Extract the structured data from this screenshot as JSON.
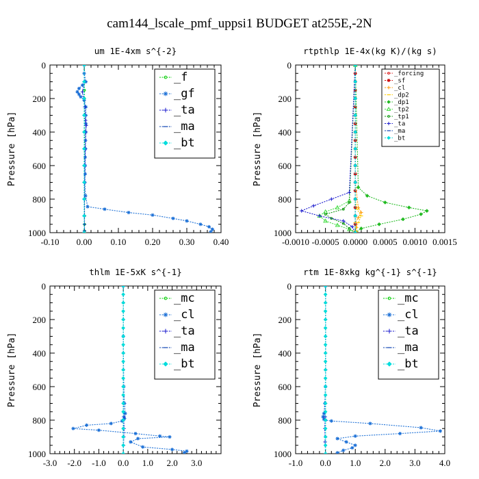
{
  "figure": {
    "title": "cam144_lscale_pmf_uppsi1  BUDGET at255E,-2N"
  },
  "chart_data": [
    {
      "type": "line",
      "title": "um  1E-4xm s^{-2}",
      "ylabel": "Pressure [hPa]",
      "xlim": [
        -0.1,
        0.4
      ],
      "ylim": [
        1000,
        0
      ],
      "xticks": [
        "-0.10",
        "0.00",
        "0.10",
        "0.20",
        "0.30",
        "0.40"
      ],
      "xtick_values": [
        -0.1,
        0.0,
        0.1,
        0.2,
        0.3,
        0.4
      ],
      "yticks": [
        "0",
        "200",
        "400",
        "600",
        "800",
        "1000"
      ],
      "ytick_values": [
        0,
        200,
        400,
        600,
        800,
        1000
      ],
      "legend_position": "top-right",
      "legend_size": "large",
      "series": [
        {
          "name": "_f",
          "color": "#00cc00",
          "marker": "circle",
          "x": [
            0.001,
            0.001,
            0.001,
            0.001,
            0.001,
            0.001,
            0.001,
            0.001,
            0.001,
            0.001,
            0.001,
            0.001,
            0.001
          ],
          "y": [
            0,
            100,
            150,
            200,
            300,
            400,
            500,
            600,
            700,
            800,
            900,
            950,
            990
          ]
        },
        {
          "name": "_gf",
          "color": "#1a6fd6",
          "marker": "star",
          "x": [
            0.0,
            0.0,
            0.005,
            -0.005,
            -0.015,
            -0.02,
            -0.015,
            -0.01,
            0.0,
            0.005,
            0.005,
            0.005,
            0.005,
            0.004,
            0.004,
            0.003,
            0.003,
            0.003,
            0.002,
            0.004,
            0.01,
            0.06,
            0.13,
            0.2,
            0.26,
            0.3,
            0.34,
            0.365,
            0.375,
            0.37
          ],
          "y": [
            0,
            50,
            100,
            120,
            140,
            160,
            175,
            190,
            210,
            250,
            300,
            350,
            400,
            450,
            500,
            550,
            600,
            650,
            700,
            780,
            845,
            860,
            880,
            895,
            915,
            930,
            950,
            965,
            980,
            995
          ]
        },
        {
          "name": "_ta",
          "color": "#1414cc",
          "marker": "plus",
          "x": [
            0.0,
            0.001,
            -0.005,
            0.002,
            0.004,
            0.006,
            0.004,
            0.003,
            0.002,
            0.001,
            0.001,
            0.001,
            0.001,
            0.001
          ],
          "y": [
            0,
            100,
            160,
            250,
            330,
            360,
            400,
            500,
            600,
            700,
            800,
            900,
            950,
            990
          ]
        },
        {
          "name": "_ma",
          "color": "#0a40b0",
          "marker": "dash",
          "x": [
            0.0,
            0.0,
            0.0,
            0.0,
            0.0,
            0.0,
            0.0,
            0.0,
            0.0,
            0.0,
            0.0
          ],
          "y": [
            0,
            100,
            200,
            300,
            400,
            500,
            600,
            700,
            800,
            900,
            1000
          ]
        },
        {
          "name": "_bt",
          "color": "#00dddd",
          "marker": "diamond",
          "x": [
            0.0,
            0.0,
            0.0,
            0.0,
            0.0,
            0.0,
            0.0,
            0.0,
            0.0,
            0.0,
            0.0
          ],
          "y": [
            0,
            100,
            200,
            300,
            400,
            500,
            600,
            700,
            800,
            900,
            1000
          ]
        }
      ]
    },
    {
      "type": "line",
      "title": "rtpthlp  1E-4x(kg K)/(kg s)",
      "ylabel": "Pressure [hPa]",
      "xlim": [
        -0.001,
        0.0015
      ],
      "ylim": [
        1000,
        0
      ],
      "xticks": [
        "-0.0010",
        "-0.0005",
        "0.0000",
        "0.0005",
        "0.0010",
        "0.0015"
      ],
      "xtick_values": [
        -0.001,
        -0.0005,
        0.0,
        0.0005,
        0.001,
        0.0015
      ],
      "yticks": [
        "0",
        "200",
        "400",
        "600",
        "800",
        "1000"
      ],
      "ytick_values": [
        0,
        200,
        400,
        600,
        800,
        1000
      ],
      "legend_position": "top-right",
      "legend_size": "small",
      "series": [
        {
          "name": "_forcing",
          "color": "#dd2222",
          "marker": "circle",
          "x": [
            0,
            0,
            0,
            0,
            0,
            0,
            0,
            0,
            0,
            0,
            0,
            0,
            0,
            0,
            0,
            0,
            0,
            0,
            0,
            0,
            0
          ],
          "y": [
            0,
            50,
            100,
            150,
            200,
            250,
            300,
            350,
            400,
            450,
            500,
            550,
            600,
            650,
            700,
            750,
            800,
            850,
            900,
            950,
            1000
          ]
        },
        {
          "name": "_sf",
          "color": "#cc0000",
          "marker": "star",
          "x": [
            0,
            0,
            0,
            0,
            0,
            0,
            0,
            0,
            0,
            0,
            0,
            0,
            0,
            0,
            0,
            0,
            0,
            0,
            0,
            0,
            0
          ],
          "y": [
            0,
            50,
            100,
            150,
            200,
            250,
            300,
            350,
            400,
            450,
            500,
            550,
            600,
            650,
            700,
            750,
            800,
            850,
            900,
            950,
            1000
          ]
        },
        {
          "name": "_cl",
          "color": "#ff9900",
          "marker": "plus",
          "x": [
            0,
            0,
            5e-05,
            0.0001,
            5e-05,
            0.0,
            2e-05,
            2e-05
          ],
          "y": [
            0,
            700,
            850,
            880,
            910,
            940,
            970,
            995
          ]
        },
        {
          "name": "_dp2",
          "color": "#ffcc00",
          "marker": "dash",
          "x": [
            0,
            0,
            3e-05,
            0.0001,
            5e-05,
            0.0
          ],
          "y": [
            0,
            800,
            860,
            900,
            940,
            990
          ]
        },
        {
          "name": "_dp1",
          "color": "#22bb22",
          "marker": "diamond",
          "x": [
            0,
            5e-05,
            0.0002,
            0.0005,
            0.0009,
            0.0012,
            0.0011,
            0.0008,
            0.0004,
            0.0001,
            0.0
          ],
          "y": [
            0,
            730,
            780,
            820,
            850,
            870,
            890,
            920,
            950,
            975,
            1000
          ]
        },
        {
          "name": "_tp2",
          "color": "#44dd44",
          "marker": "triangle",
          "x": [
            0,
            -0.0001,
            -0.0003,
            -0.0005,
            -0.0006,
            -0.0005,
            -0.0003,
            -0.0001,
            0.0
          ],
          "y": [
            0,
            810,
            850,
            875,
            900,
            930,
            955,
            980,
            1000
          ]
        },
        {
          "name": "_tp1",
          "color": "#119911",
          "marker": "circle",
          "x": [
            0,
            -0.0001,
            -0.0002,
            -0.0005,
            -0.0004,
            -0.0002,
            -0.0001,
            0.0
          ],
          "y": [
            0,
            820,
            860,
            890,
            915,
            945,
            975,
            1000
          ]
        },
        {
          "name": "_ta",
          "color": "#1414cc",
          "marker": "plus",
          "x": [
            0,
            -0.0001,
            -0.0004,
            -0.0007,
            -0.0009,
            -0.0006,
            -0.0002,
            -5e-05,
            0.0
          ],
          "y": [
            0,
            760,
            800,
            840,
            870,
            900,
            930,
            965,
            1000
          ]
        },
        {
          "name": "_ma",
          "color": "#0a40b0",
          "marker": "dash",
          "x": [
            0,
            0,
            0,
            0,
            0,
            0,
            0,
            0,
            0,
            0,
            0
          ],
          "y": [
            0,
            100,
            200,
            300,
            400,
            500,
            600,
            700,
            800,
            900,
            1000
          ]
        },
        {
          "name": "_bt",
          "color": "#00dddd",
          "marker": "diamond",
          "x": [
            0,
            0,
            0,
            0,
            0,
            0,
            0,
            0,
            0,
            0,
            0
          ],
          "y": [
            0,
            100,
            200,
            300,
            400,
            500,
            600,
            700,
            800,
            900,
            1000
          ]
        }
      ]
    },
    {
      "type": "line",
      "title": "thlm  1E-5xK s^{-1}",
      "ylabel": "Pressure [hPa]",
      "xlim": [
        -3.0,
        4.0
      ],
      "ylim": [
        1000,
        0
      ],
      "xticks": [
        "-3.0",
        "-2.0",
        "-1.0",
        "0.0",
        "1.0",
        "2.0",
        "3.0"
      ],
      "xtick_values": [
        -3.0,
        -2.0,
        -1.0,
        0.0,
        1.0,
        2.0,
        3.0
      ],
      "yticks": [
        "0",
        "200",
        "400",
        "600",
        "800",
        "1000"
      ],
      "ytick_values": [
        0,
        200,
        400,
        600,
        800,
        1000
      ],
      "legend_position": "top-right",
      "legend_size": "large",
      "series": [
        {
          "name": "_mc",
          "color": "#00cc00",
          "marker": "circle",
          "x": [
            0,
            0,
            0,
            0,
            0,
            0,
            0,
            0,
            0,
            0,
            0,
            0,
            0,
            0,
            0,
            0,
            0,
            0,
            0,
            0,
            0
          ],
          "y": [
            0,
            50,
            100,
            150,
            200,
            250,
            300,
            350,
            400,
            450,
            500,
            550,
            600,
            650,
            700,
            750,
            800,
            850,
            900,
            950,
            1000
          ]
        },
        {
          "name": "_cl",
          "color": "#1a6fd6",
          "marker": "star",
          "x": [
            0,
            0,
            0.02,
            0.05,
            0.08,
            0.05,
            0.0,
            -0.05,
            -0.5,
            -1.5,
            -2.05,
            -1.0,
            0.5,
            1.5,
            1.9,
            0.6,
            0.3,
            0.8,
            2.0,
            2.6,
            2.5
          ],
          "y": [
            0,
            300,
            600,
            700,
            760,
            790,
            800,
            805,
            820,
            830,
            850,
            860,
            880,
            895,
            900,
            910,
            930,
            960,
            975,
            985,
            995
          ]
        },
        {
          "name": "_ta",
          "color": "#1414cc",
          "marker": "plus",
          "x": [
            0,
            0,
            0.01,
            0.02,
            0.03,
            0.02,
            0.01,
            0.0
          ],
          "y": [
            0,
            400,
            700,
            780,
            850,
            900,
            950,
            1000
          ]
        },
        {
          "name": "_ma",
          "color": "#0a40b0",
          "marker": "dash",
          "x": [
            0,
            0,
            0,
            0,
            0,
            0,
            0,
            0,
            0,
            0,
            0
          ],
          "y": [
            0,
            100,
            200,
            300,
            400,
            500,
            600,
            700,
            800,
            900,
            1000
          ]
        },
        {
          "name": "_bt",
          "color": "#00dddd",
          "marker": "diamond",
          "x": [
            0,
            0,
            0,
            0,
            0,
            0,
            0,
            0,
            0,
            0,
            0,
            0,
            0,
            0,
            0,
            0,
            0,
            0,
            0,
            0,
            0
          ],
          "y": [
            0,
            50,
            100,
            150,
            200,
            250,
            300,
            350,
            400,
            450,
            500,
            550,
            600,
            650,
            700,
            750,
            800,
            850,
            900,
            950,
            1000
          ]
        }
      ]
    },
    {
      "type": "line",
      "title": "rtm  1E-8xkg kg^{-1} s^{-1}",
      "ylabel": "Pressure [hPa]",
      "xlim": [
        -1.0,
        4.0
      ],
      "ylim": [
        1000,
        0
      ],
      "xticks": [
        "-1.0",
        "0.0",
        "1.0",
        "2.0",
        "3.0",
        "4.0"
      ],
      "xtick_values": [
        -1.0,
        0.0,
        1.0,
        2.0,
        3.0,
        4.0
      ],
      "yticks": [
        "0",
        "200",
        "400",
        "600",
        "800",
        "1000"
      ],
      "ytick_values": [
        0,
        200,
        400,
        600,
        800,
        1000
      ],
      "legend_position": "top-right",
      "legend_size": "large",
      "series": [
        {
          "name": "_mc",
          "color": "#00cc00",
          "marker": "circle",
          "x": [
            0,
            0,
            0,
            0,
            0,
            0,
            0,
            0,
            0,
            0,
            0,
            0,
            0,
            0,
            0,
            0,
            0,
            0,
            0,
            0,
            0
          ],
          "y": [
            0,
            50,
            100,
            150,
            200,
            250,
            300,
            350,
            400,
            450,
            500,
            550,
            600,
            650,
            700,
            750,
            800,
            850,
            900,
            950,
            1000
          ]
        },
        {
          "name": "_cl",
          "color": "#1a6fd6",
          "marker": "star",
          "x": [
            0,
            0,
            -0.02,
            -0.05,
            -0.08,
            -0.05,
            0.0,
            0.2,
            1.5,
            3.2,
            3.85,
            2.5,
            1.0,
            0.4,
            0.7,
            1.0,
            0.9,
            0.6,
            0.4
          ],
          "y": [
            0,
            600,
            700,
            760,
            780,
            795,
            800,
            805,
            820,
            845,
            865,
            880,
            895,
            910,
            930,
            950,
            965,
            980,
            995
          ]
        },
        {
          "name": "_ta",
          "color": "#1414cc",
          "marker": "plus",
          "x": [
            0,
            0,
            -0.01,
            -0.02,
            -0.01,
            0.0
          ],
          "y": [
            0,
            500,
            780,
            850,
            930,
            1000
          ]
        },
        {
          "name": "_ma",
          "color": "#0a40b0",
          "marker": "dash",
          "x": [
            0,
            0,
            0,
            0,
            0,
            0,
            0,
            0,
            0,
            0,
            0
          ],
          "y": [
            0,
            100,
            200,
            300,
            400,
            500,
            600,
            700,
            800,
            900,
            1000
          ]
        },
        {
          "name": "_bt",
          "color": "#00dddd",
          "marker": "diamond",
          "x": [
            0,
            0,
            0,
            0,
            0,
            0,
            0,
            0,
            0,
            0,
            0,
            0,
            0,
            0,
            0,
            0,
            0,
            0,
            0,
            0,
            0
          ],
          "y": [
            0,
            50,
            100,
            150,
            200,
            250,
            300,
            350,
            400,
            450,
            500,
            550,
            600,
            650,
            700,
            750,
            800,
            850,
            900,
            950,
            1000
          ]
        }
      ]
    }
  ]
}
